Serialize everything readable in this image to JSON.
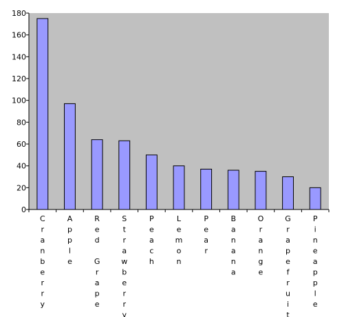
{
  "chart_data": {
    "type": "bar",
    "title": "",
    "xlabel": "",
    "ylabel": "",
    "ylim": [
      0,
      180
    ],
    "yticks": [
      0,
      20,
      40,
      60,
      80,
      100,
      120,
      140,
      160,
      180
    ],
    "grid": false,
    "legend": "none",
    "categories": [
      "Cranberry",
      "Apple",
      "Red Grape",
      "Strawberry",
      "Peach",
      "Lemon",
      "Pear",
      "Banana",
      "Orange",
      "Grapefruit",
      "Pineapple"
    ],
    "values": [
      175,
      97,
      64,
      63,
      50,
      40,
      37,
      36,
      35,
      30,
      20
    ],
    "colors": {
      "plot_background": "#c0c0c0",
      "bar_fill": "#9999ff",
      "bar_stroke": "#000000",
      "axis": "#000000"
    }
  }
}
